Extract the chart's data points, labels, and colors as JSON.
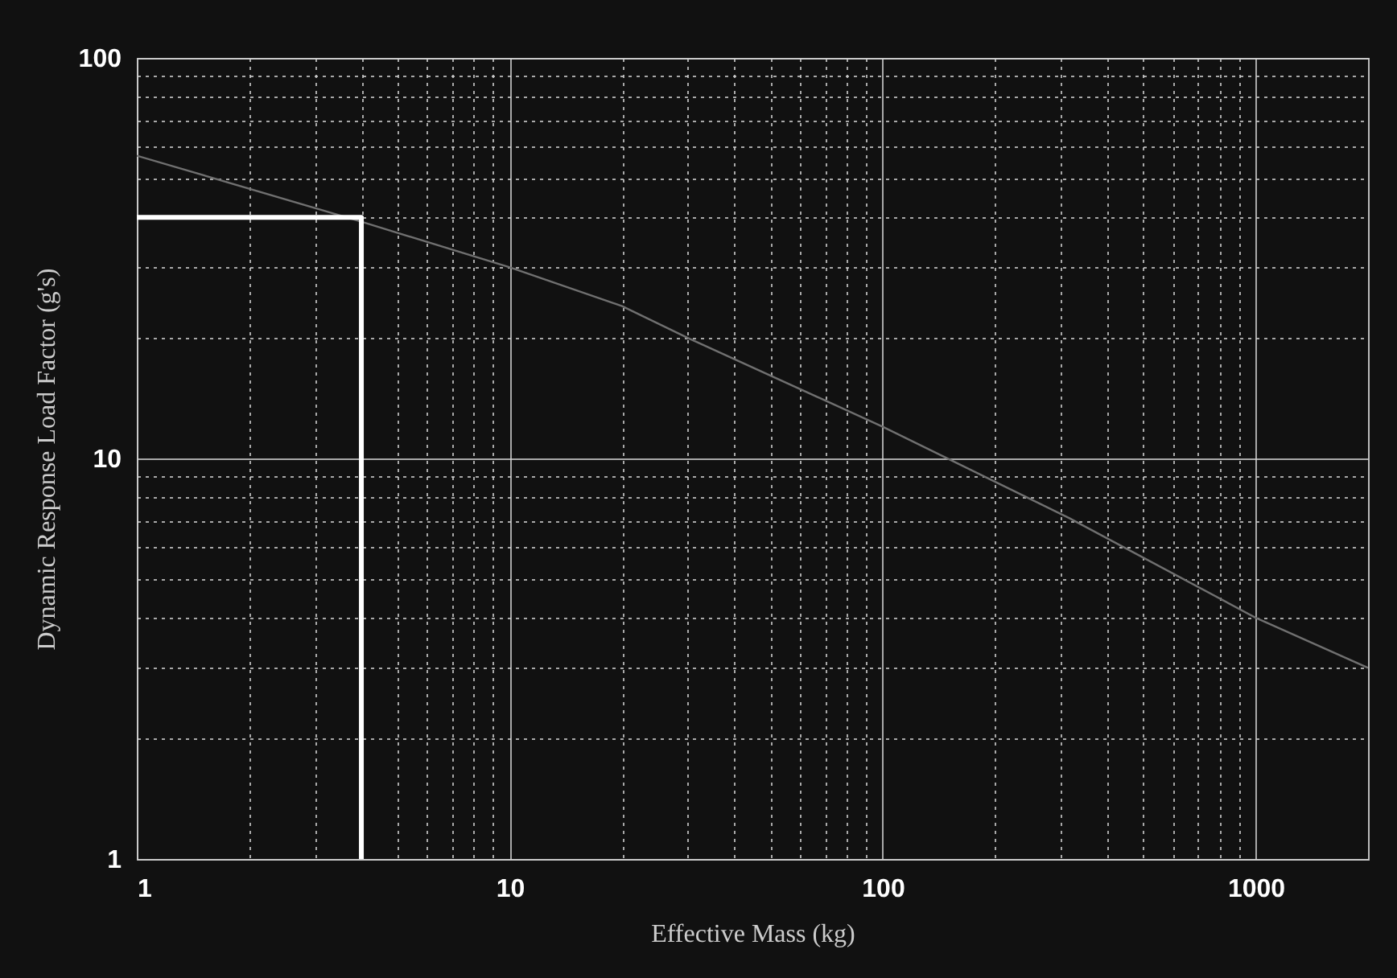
{
  "chart_data": {
    "type": "line",
    "xlabel": "Effective Mass (kg)",
    "ylabel": "Dynamic Response Load Factor (g's)",
    "log": "xy",
    "grid": true,
    "marker": "none",
    "line_style": "solid",
    "xlim": [
      1,
      2000
    ],
    "ylim": [
      1,
      100
    ],
    "xticks": [
      1,
      {
        "value": 2,
        "label": null
      },
      {
        "value": 3,
        "label": null
      },
      {
        "value": 4,
        "label": null
      },
      {
        "value": 5,
        "label": null
      },
      {
        "value": 6,
        "label": null
      },
      {
        "value": 7,
        "label": null
      },
      {
        "value": 8,
        "label": null
      },
      {
        "value": 9,
        "label": null
      },
      10,
      {
        "value": 20,
        "label": null
      },
      {
        "value": 30,
        "label": null
      },
      {
        "value": 40,
        "label": null
      },
      {
        "value": 50,
        "label": null
      },
      {
        "value": 60,
        "label": null
      },
      {
        "value": 70,
        "label": null
      },
      {
        "value": 80,
        "label": null
      },
      {
        "value": 90,
        "label": null
      },
      100,
      {
        "value": 200,
        "label": null
      },
      {
        "value": 300,
        "label": null
      },
      {
        "value": 400,
        "label": null
      },
      {
        "value": 500,
        "label": null
      },
      {
        "value": 600,
        "label": null
      },
      {
        "value": 700,
        "label": null
      },
      {
        "value": 800,
        "label": null
      },
      {
        "value": 900,
        "label": null
      },
      1000
    ],
    "yticks": [
      1,
      {
        "value": 2,
        "label": null
      },
      {
        "value": 3,
        "label": null
      },
      {
        "value": 4,
        "label": null
      },
      {
        "value": 5,
        "label": null
      },
      {
        "value": 6,
        "label": null
      },
      {
        "value": 7,
        "label": null
      },
      {
        "value": 8,
        "label": null
      },
      {
        "value": 9,
        "label": null
      },
      10,
      {
        "value": 20,
        "label": null
      },
      {
        "value": 30,
        "label": null
      },
      {
        "value": 40,
        "label": null
      },
      {
        "value": 50,
        "label": null
      },
      {
        "value": 60,
        "label": null
      },
      {
        "value": 70,
        "label": null
      },
      {
        "value": 80,
        "label": null
      },
      {
        "value": 90,
        "label": null
      },
      100
    ],
    "series": [
      {
        "color": "#707070",
        "x": [
          1,
          4,
          10,
          20,
          30,
          100,
          316,
          1000,
          2000
        ],
        "values": [
          57,
          39,
          30,
          24,
          20,
          12,
          7.1,
          4,
          3
        ]
      },
      {
        "color": "#ffffff",
        "x": [
          1,
          4,
          4
        ],
        "values": [
          40,
          40,
          1
        ]
      }
    ]
  }
}
